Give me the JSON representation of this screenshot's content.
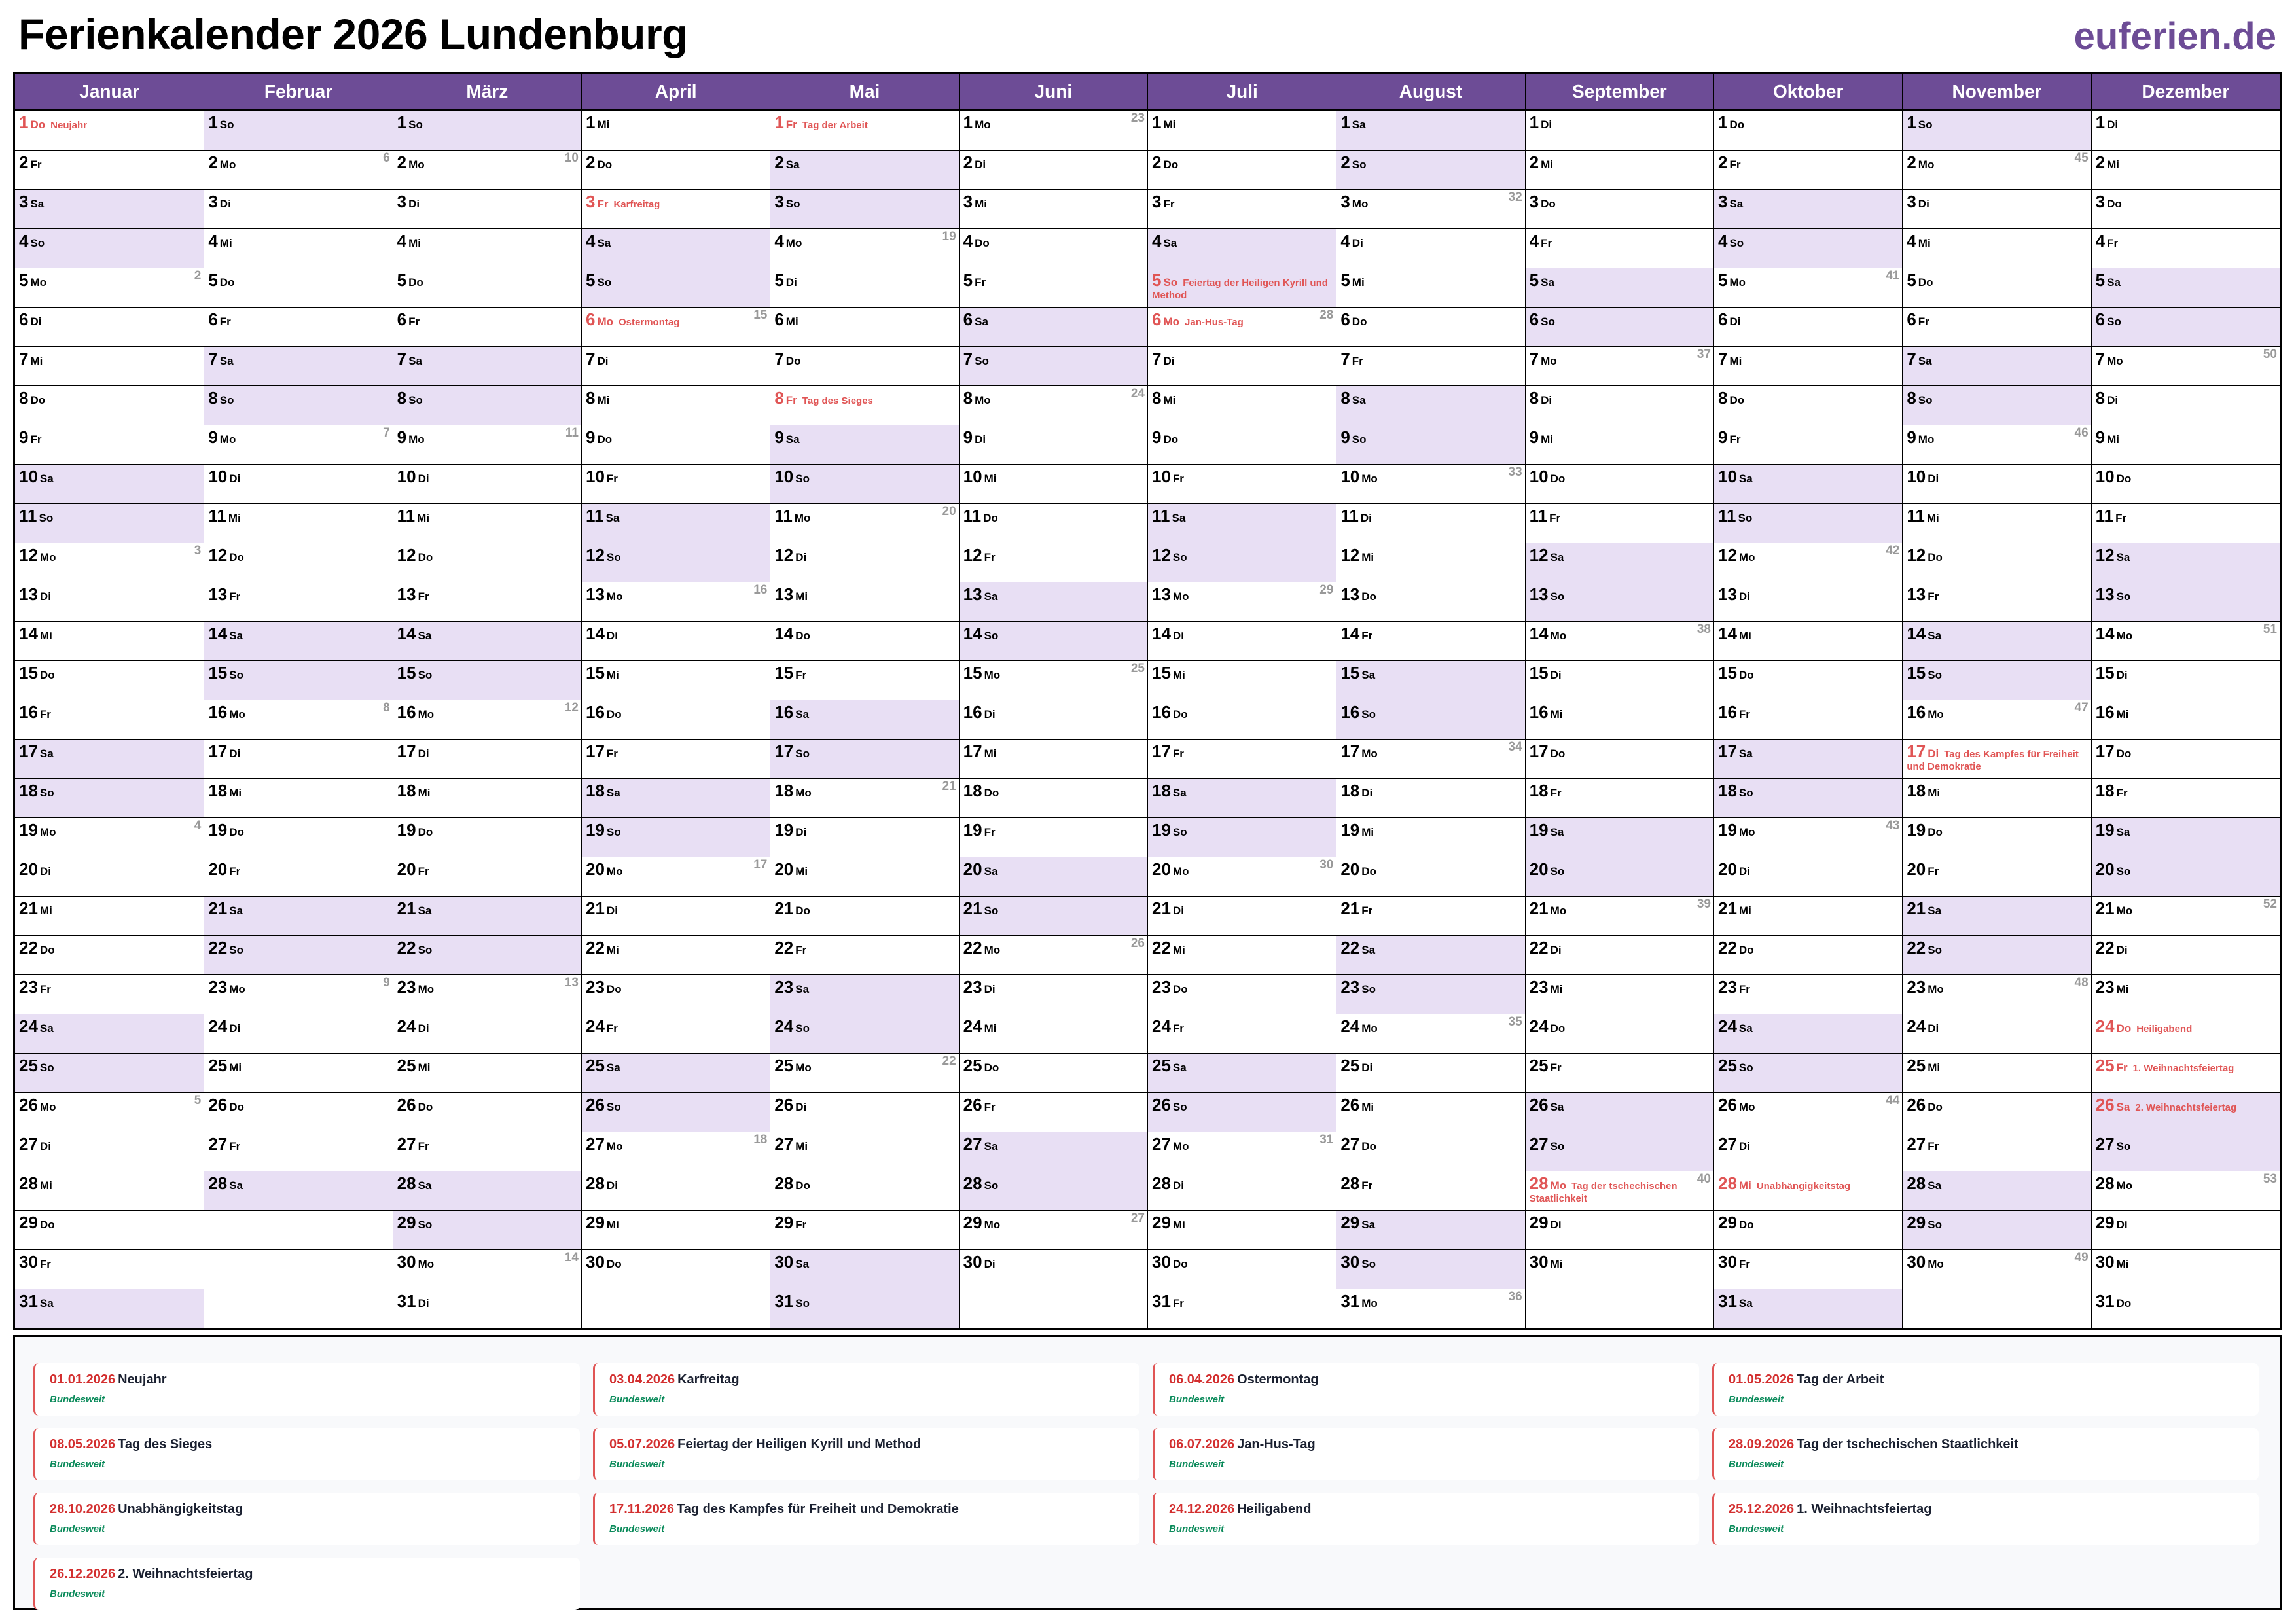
{
  "header": {
    "title": "Ferienkalender 2026 Lundenburg",
    "logo": "euferien.de"
  },
  "colors": {
    "header": "#6d4c96",
    "weekend": "#e8dff4",
    "holiday": "#e05555"
  },
  "weekdays": [
    "Mo",
    "Di",
    "Mi",
    "Do",
    "Fr",
    "Sa",
    "So"
  ],
  "months": [
    {
      "name": "Januar",
      "length": 31,
      "first_weekday": "Do",
      "kw": {
        "5": 2,
        "12": 3,
        "19": 4,
        "26": 5
      },
      "holidays": {
        "1": "Neujahr"
      }
    },
    {
      "name": "Februar",
      "length": 28,
      "first_weekday": "So",
      "kw": {
        "2": 6,
        "9": 7,
        "16": 8,
        "23": 9
      },
      "holidays": {}
    },
    {
      "name": "März",
      "length": 31,
      "first_weekday": "So",
      "kw": {
        "2": 10,
        "9": 11,
        "16": 12,
        "23": 13,
        "30": 14
      },
      "holidays": {}
    },
    {
      "name": "April",
      "length": 30,
      "first_weekday": "Mi",
      "kw": {
        "6": 15,
        "13": 16,
        "20": 17,
        "27": 18
      },
      "holidays": {
        "3": "Karfreitag",
        "6": "Ostermontag"
      }
    },
    {
      "name": "Mai",
      "length": 31,
      "first_weekday": "Fr",
      "kw": {
        "4": 19,
        "11": 20,
        "18": 21,
        "25": 22
      },
      "holidays": {
        "1": "Tag der Arbeit",
        "8": "Tag des Sieges"
      }
    },
    {
      "name": "Juni",
      "length": 30,
      "first_weekday": "Mo",
      "kw": {
        "1": 23,
        "8": 24,
        "15": 25,
        "22": 26,
        "29": 27
      },
      "holidays": {}
    },
    {
      "name": "Juli",
      "length": 31,
      "first_weekday": "Mi",
      "kw": {
        "6": 28,
        "13": 29,
        "20": 30,
        "27": 31
      },
      "holidays": {
        "5": "Feiertag der Heiligen Kyrill und Method",
        "6": "Jan-Hus-Tag"
      }
    },
    {
      "name": "August",
      "length": 31,
      "first_weekday": "Sa",
      "kw": {
        "3": 32,
        "10": 33,
        "17": 34,
        "24": 35,
        "31": 36
      },
      "holidays": {}
    },
    {
      "name": "September",
      "length": 30,
      "first_weekday": "Di",
      "kw": {
        "7": 37,
        "14": 38,
        "21": 39,
        "28": 40
      },
      "holidays": {
        "28": "Tag der tschechischen Staatlichkeit"
      }
    },
    {
      "name": "Oktober",
      "length": 31,
      "first_weekday": "Do",
      "kw": {
        "5": 41,
        "12": 42,
        "19": 43,
        "26": 44
      },
      "holidays": {
        "28": "Unabhängigkeitstag"
      }
    },
    {
      "name": "November",
      "length": 30,
      "first_weekday": "So",
      "kw": {
        "2": 45,
        "9": 46,
        "16": 47,
        "23": 48,
        "30": 49
      },
      "holidays": {
        "17": "Tag des Kampfes für Freiheit und Demokratie"
      }
    },
    {
      "name": "Dezember",
      "length": 31,
      "first_weekday": "Di",
      "kw": {
        "7": 50,
        "14": 51,
        "21": 52,
        "28": 53
      },
      "holidays": {
        "24": "Heiligabend",
        "25": "1. Weihnachtsfeiertag",
        "26": "2. Weihnachtsfeiertag"
      }
    }
  ],
  "legend": [
    {
      "date": "01.01.2026",
      "name": "Neujahr",
      "region": "Bundesweit"
    },
    {
      "date": "03.04.2026",
      "name": "Karfreitag",
      "region": "Bundesweit"
    },
    {
      "date": "06.04.2026",
      "name": "Ostermontag",
      "region": "Bundesweit"
    },
    {
      "date": "01.05.2026",
      "name": "Tag der Arbeit",
      "region": "Bundesweit"
    },
    {
      "date": "08.05.2026",
      "name": "Tag des Sieges",
      "region": "Bundesweit"
    },
    {
      "date": "05.07.2026",
      "name": "Feiertag der Heiligen Kyrill und Method",
      "region": "Bundesweit"
    },
    {
      "date": "06.07.2026",
      "name": "Jan-Hus-Tag",
      "region": "Bundesweit"
    },
    {
      "date": "28.09.2026",
      "name": "Tag der tschechischen Staatlichkeit",
      "region": "Bundesweit"
    },
    {
      "date": "28.10.2026",
      "name": "Unabhängigkeitstag",
      "region": "Bundesweit"
    },
    {
      "date": "17.11.2026",
      "name": "Tag des Kampfes für Freiheit und Demokratie",
      "region": "Bundesweit"
    },
    {
      "date": "24.12.2026",
      "name": "Heiligabend",
      "region": "Bundesweit"
    },
    {
      "date": "25.12.2026",
      "name": "1. Weihnachtsfeiertag",
      "region": "Bundesweit"
    },
    {
      "date": "26.12.2026",
      "name": "2. Weihnachtsfeiertag",
      "region": "Bundesweit"
    }
  ]
}
